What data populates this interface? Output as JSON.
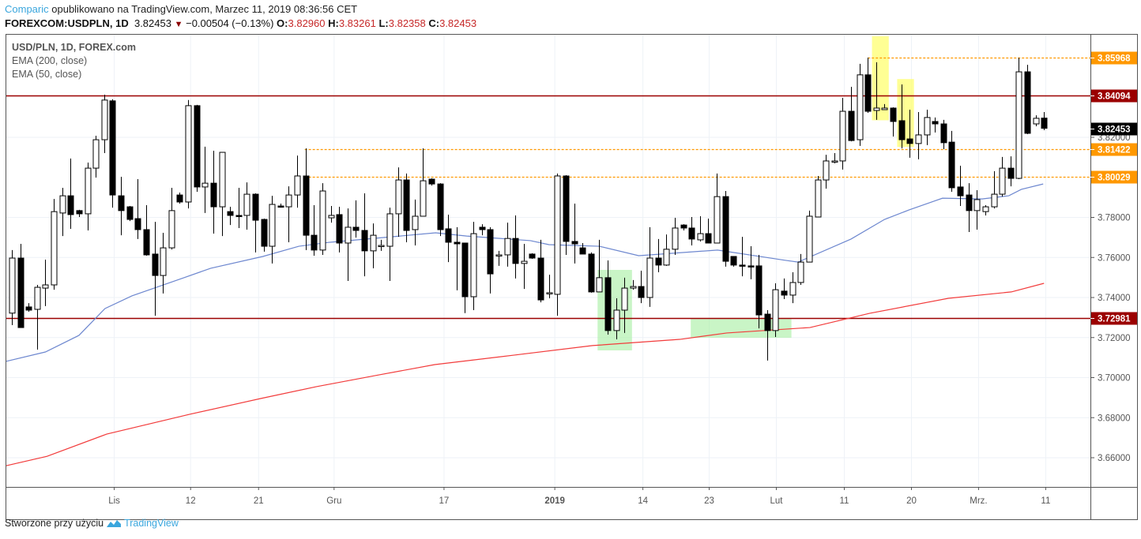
{
  "header": {
    "publisher": "Comparic",
    "published_text": "opublikowano na TradingView.com, Marzec 11, 2019 08:36:56 CET",
    "symbol": "FOREXCOM:USDPLN, 1D",
    "last": "3.82453",
    "change": "−0.00504 (−0.13%)",
    "o_label": "O:",
    "o": "3.82960",
    "h_label": "H:",
    "h": "3.83261",
    "l_label": "L:",
    "l": "3.82358",
    "c_label": "C:",
    "c": "3.82453"
  },
  "legend": {
    "title": "USD/PLN, 1D, FOREX.com",
    "ema200": "EMA (200, close)",
    "ema50": "EMA (50, close)"
  },
  "footer": {
    "text": "Stworzone przy użyciu",
    "brand": "TradingView"
  },
  "colors": {
    "ema200": "#f23b3b",
    "ema50": "#6d87cf",
    "level_red": "#9b0000",
    "level_orange": "#ff9800",
    "last_price": "#000000",
    "highlight_yellow": "#ffff66",
    "highlight_green": "#a5eea0"
  },
  "chart_data": {
    "type": "candlestick",
    "title": "USD/PLN, 1D, FOREX.com",
    "ylim": [
      3.64,
      3.87
    ],
    "y_ticks": [
      "3.66000",
      "3.68000",
      "3.70000",
      "3.72000",
      "3.74000",
      "3.76000",
      "3.78000",
      "3.82000"
    ],
    "y_tick_values": [
      3.66,
      3.68,
      3.7,
      3.72,
      3.74,
      3.76,
      3.78,
      3.82
    ],
    "x_ticks": [
      {
        "label": "Lis",
        "bar": 12.2
      },
      {
        "label": "12",
        "bar": 21.3
      },
      {
        "label": "21",
        "bar": 29.4
      },
      {
        "label": "Gru",
        "bar": 38.4
      },
      {
        "label": "17",
        "bar": 51.5
      },
      {
        "label": "2019",
        "bar": 64.7,
        "bold": true
      },
      {
        "label": "14",
        "bar": 75.2
      },
      {
        "label": "23",
        "bar": 83.1
      },
      {
        "label": "Lut",
        "bar": 91.1
      },
      {
        "label": "11",
        "bar": 99.2
      },
      {
        "label": "20",
        "bar": 107.2
      },
      {
        "label": "Mrz.",
        "bar": 115.2
      },
      {
        "label": "11",
        "bar": 123.2
      }
    ],
    "levels": [
      {
        "value": 3.85968,
        "label": "3.85968",
        "style": "orange-dotted",
        "from_bar": 102.0
      },
      {
        "value": 3.84094,
        "label": "3.84094",
        "style": "red-solid",
        "from_bar": -1
      },
      {
        "value": 3.82453,
        "label": "3.82453",
        "style": "last-price",
        "from_bar": null
      },
      {
        "value": 3.81422,
        "label": "3.81422",
        "style": "orange-dotted",
        "from_bar": 34.9
      },
      {
        "value": 3.80029,
        "label": "3.80029",
        "style": "orange-dotted",
        "from_bar": 34.9
      },
      {
        "value": 3.72981,
        "label": "3.72981",
        "style": "red-solid",
        "from_bar": -1
      }
    ],
    "ohlc": [
      [
        3.7322,
        3.7637,
        3.7262,
        3.7597
      ],
      [
        3.7597,
        3.7668,
        3.725,
        3.725
      ],
      [
        3.7353,
        3.7372,
        3.7329,
        3.7337
      ],
      [
        3.7341,
        3.7463,
        3.714,
        3.7451
      ],
      [
        3.7447,
        3.7589,
        3.7357,
        3.7463
      ],
      [
        3.7463,
        3.7892,
        3.7439,
        3.7829
      ],
      [
        3.7822,
        3.7948,
        3.7707,
        3.7908
      ],
      [
        3.7908,
        3.8094,
        3.7743,
        3.7814
      ],
      [
        3.7834,
        3.7838,
        3.7802,
        3.7818
      ],
      [
        3.7818,
        3.8074,
        3.7735,
        3.8046
      ],
      [
        3.8046,
        3.8208,
        3.7999,
        3.8188
      ],
      [
        3.8188,
        3.8413,
        3.8121,
        3.8386
      ],
      [
        3.8382,
        3.839,
        3.7849,
        3.7912
      ],
      [
        3.7908,
        3.8003,
        3.7711,
        3.7834
      ],
      [
        3.7853,
        3.7857,
        3.7782,
        3.779
      ],
      [
        3.7794,
        3.7991,
        3.7692,
        3.7739
      ],
      [
        3.7739,
        3.7861,
        3.7609,
        3.7613
      ],
      [
        3.7617,
        3.7778,
        3.7309,
        3.751
      ],
      [
        3.751,
        3.7723,
        3.742,
        3.7648
      ],
      [
        3.7648,
        3.7948,
        3.764,
        3.7834
      ],
      [
        3.7912,
        3.7924,
        3.7869,
        3.7877
      ],
      [
        3.7877,
        3.8386,
        3.7845,
        3.8358
      ],
      [
        3.8358,
        3.8362,
        3.7928,
        3.7952
      ],
      [
        3.7952,
        3.8153,
        3.7822,
        3.7971
      ],
      [
        3.7971,
        3.8133,
        3.7719,
        3.7853
      ],
      [
        3.7853,
        3.8125,
        3.7707,
        3.8125
      ],
      [
        3.7829,
        3.7853,
        3.7762,
        3.781
      ],
      [
        3.781,
        3.7948,
        3.7747,
        3.7806
      ],
      [
        3.781,
        3.7975,
        3.7739,
        3.7916
      ],
      [
        3.7916,
        3.792,
        3.7625,
        3.7786
      ],
      [
        3.779,
        3.7794,
        3.7629,
        3.7656
      ],
      [
        3.7656,
        3.7908,
        3.757,
        3.7865
      ],
      [
        3.7857,
        3.7869,
        3.7849,
        3.7853
      ],
      [
        3.7853,
        3.7955,
        3.7676,
        3.7912
      ],
      [
        3.7912,
        3.8109,
        3.7849,
        3.8007
      ],
      [
        3.8007,
        3.8145,
        3.7637,
        3.7711
      ],
      [
        3.7711,
        3.7861,
        3.7609,
        3.7637
      ],
      [
        3.7637,
        3.7971,
        3.7613,
        3.7932
      ],
      [
        3.7798,
        3.7857,
        3.7774,
        3.781
      ],
      [
        3.7814,
        3.7853,
        3.7625,
        3.7672
      ],
      [
        3.7672,
        3.7845,
        3.7483,
        3.7751
      ],
      [
        3.7751,
        3.7885,
        3.7699,
        3.7735
      ],
      [
        3.7735,
        3.792,
        3.7506,
        3.7633
      ],
      [
        3.7633,
        3.777,
        3.7546,
        3.7711
      ],
      [
        3.7656,
        3.7688,
        3.7633,
        3.766
      ],
      [
        3.7656,
        3.7849,
        3.7483,
        3.7818
      ],
      [
        3.7818,
        3.805,
        3.7703,
        3.7987
      ],
      [
        3.7987,
        3.8019,
        3.7676,
        3.7735
      ],
      [
        3.7739,
        3.7889,
        3.766,
        3.7806
      ],
      [
        3.7806,
        3.8145,
        3.7806,
        3.7983
      ],
      [
        3.7991,
        3.7995,
        3.7959,
        3.7967
      ],
      [
        3.7967,
        3.7971,
        3.7707,
        3.7739
      ],
      [
        3.7743,
        3.7814,
        3.7577,
        3.7676
      ],
      [
        3.7676,
        3.7751,
        3.7436,
        3.7668
      ],
      [
        3.7672,
        3.7672,
        3.7322,
        3.7404
      ],
      [
        3.7404,
        3.7778,
        3.7337,
        3.7719
      ],
      [
        3.7751,
        3.7766,
        3.7711,
        3.7739
      ],
      [
        3.7739,
        3.7751,
        3.742,
        3.7518
      ],
      [
        3.7613,
        3.7633,
        3.7558,
        3.7613
      ],
      [
        3.7613,
        3.7774,
        3.7554,
        3.7695
      ],
      [
        3.7695,
        3.781,
        3.7495,
        3.757
      ],
      [
        3.757,
        3.7668,
        3.7443,
        3.7581
      ],
      [
        3.7617,
        3.7621,
        3.7593,
        3.7597
      ],
      [
        3.7597,
        3.7688,
        3.7376,
        3.7388
      ],
      [
        3.742,
        3.7514,
        3.7396,
        3.7424
      ],
      [
        3.7416,
        3.8019,
        3.7309,
        3.8007
      ],
      [
        3.8007,
        3.8011,
        3.7613,
        3.768
      ],
      [
        3.768,
        3.7869,
        3.757,
        3.7668
      ],
      [
        3.7648,
        3.7672,
        3.7617,
        3.7617
      ],
      [
        3.7617,
        3.7625,
        3.7424,
        3.7428
      ],
      [
        3.7428,
        3.7688,
        3.7428,
        3.7499
      ],
      [
        3.7499,
        3.7585,
        3.7215,
        3.7235
      ],
      [
        3.7235,
        3.7396,
        3.7191,
        3.7337
      ],
      [
        3.7337,
        3.7499,
        3.7223,
        3.7447
      ],
      [
        3.7447,
        3.7487,
        3.7439,
        3.7455
      ],
      [
        3.7455,
        3.7534,
        3.7372,
        3.74
      ],
      [
        3.74,
        3.7751,
        3.7353,
        3.7597
      ],
      [
        3.7597,
        3.7692,
        3.7526,
        3.7562
      ],
      [
        3.7562,
        3.7715,
        3.7558,
        3.7641
      ],
      [
        3.7641,
        3.7798,
        3.7613,
        3.7747
      ],
      [
        3.7762,
        3.7766,
        3.7735,
        3.7747
      ],
      [
        3.7747,
        3.7802,
        3.766,
        3.7692
      ],
      [
        3.7688,
        3.7806,
        3.768,
        3.7719
      ],
      [
        3.7719,
        3.7794,
        3.7672,
        3.7672
      ],
      [
        3.7672,
        3.8019,
        3.7672,
        3.7904
      ],
      [
        3.7904,
        3.7932,
        3.7554,
        3.7581
      ],
      [
        3.7605,
        3.7605,
        3.7554,
        3.7562
      ],
      [
        3.7562,
        3.7703,
        3.7506,
        3.7558
      ],
      [
        3.7558,
        3.7656,
        3.7491,
        3.7554
      ],
      [
        3.7558,
        3.7613,
        3.7246,
        3.7313
      ],
      [
        3.7317,
        3.7337,
        3.7085,
        3.7235
      ],
      [
        3.7235,
        3.7471,
        3.7203,
        3.7439
      ],
      [
        3.7432,
        3.7495,
        3.7392,
        3.7412
      ],
      [
        3.7412,
        3.7526,
        3.7372,
        3.7475
      ],
      [
        3.7475,
        3.7617,
        3.7463,
        3.7577
      ],
      [
        3.7577,
        3.7834,
        3.7577,
        3.7806
      ],
      [
        3.7802,
        3.8007,
        3.7802,
        3.7987
      ],
      [
        3.7987,
        3.8113,
        3.7944,
        3.8082
      ],
      [
        3.8078,
        3.8121,
        3.807,
        3.8082
      ],
      [
        3.8082,
        3.8397,
        3.8039,
        3.833
      ],
      [
        3.833,
        3.8452,
        3.818,
        3.8184
      ],
      [
        3.8188,
        3.8567,
        3.8157,
        3.8512
      ],
      [
        3.8512,
        3.8598,
        3.8322,
        3.833
      ],
      [
        3.8334,
        3.8575,
        3.8287,
        3.8346
      ],
      [
        3.8338,
        3.8366,
        3.8338,
        3.8346
      ],
      [
        3.8346,
        3.835,
        3.8204,
        3.8279
      ],
      [
        3.8283,
        3.8464,
        3.8145,
        3.8188
      ],
      [
        3.8192,
        3.8338,
        3.8098,
        3.8169
      ],
      [
        3.8169,
        3.8326,
        3.809,
        3.8212
      ],
      [
        3.8212,
        3.8338,
        3.8161,
        3.8299
      ],
      [
        3.8279,
        3.8299,
        3.8224,
        3.8267
      ],
      [
        3.8267,
        3.8287,
        3.8141,
        3.8173
      ],
      [
        3.8176,
        3.8232,
        3.7928,
        3.7948
      ],
      [
        3.7952,
        3.8058,
        3.7857,
        3.7908
      ],
      [
        3.7912,
        3.7971,
        3.7727,
        3.7834
      ],
      [
        3.7834,
        3.7936,
        3.7739,
        3.7889
      ],
      [
        3.7829,
        3.7861,
        3.781,
        3.7853
      ],
      [
        3.7853,
        3.8031,
        3.7845,
        3.7916
      ],
      [
        3.7916,
        3.8102,
        3.7904,
        3.8046
      ],
      [
        3.8046,
        3.8105,
        3.7955,
        3.7995
      ],
      [
        3.7995,
        3.8597,
        3.7991,
        3.8527
      ],
      [
        3.8527,
        3.8562,
        3.8216,
        3.822
      ],
      [
        3.8267,
        3.831,
        3.8255,
        3.8295
      ],
      [
        3.8296,
        3.83261,
        3.82358,
        3.82453
      ]
    ],
    "ema50": [
      [
        -0.7,
        3.7081
      ],
      [
        4.0,
        3.7128
      ],
      [
        8.0,
        3.7211
      ],
      [
        11.1,
        3.7345
      ],
      [
        14.3,
        3.7408
      ],
      [
        20.5,
        3.7499
      ],
      [
        23.7,
        3.7546
      ],
      [
        29.9,
        3.7605
      ],
      [
        34.2,
        3.7656
      ],
      [
        37.9,
        3.7676
      ],
      [
        45.2,
        3.7703
      ],
      [
        50.5,
        3.7723
      ],
      [
        54.2,
        3.7707
      ],
      [
        61.8,
        3.7684
      ],
      [
        64.0,
        3.7664
      ],
      [
        70.0,
        3.7656
      ],
      [
        74.7,
        3.7609
      ],
      [
        84.1,
        3.7637
      ],
      [
        92.3,
        3.7585
      ],
      [
        93.7,
        3.7577
      ],
      [
        100.0,
        3.7692
      ],
      [
        104.0,
        3.779
      ],
      [
        106.9,
        3.7837
      ],
      [
        110.9,
        3.7896
      ],
      [
        115.6,
        3.7892
      ],
      [
        118.8,
        3.7908
      ],
      [
        120.3,
        3.794
      ],
      [
        122.9,
        3.7967
      ]
    ],
    "ema200": [
      [
        -0.7,
        3.656
      ],
      [
        4.2,
        3.6607
      ],
      [
        11.3,
        3.6718
      ],
      [
        21.2,
        3.6817
      ],
      [
        29.7,
        3.6896
      ],
      [
        36.3,
        3.6955
      ],
      [
        43.8,
        3.7014
      ],
      [
        50.4,
        3.7065
      ],
      [
        59.8,
        3.7112
      ],
      [
        69.2,
        3.716
      ],
      [
        79.6,
        3.7191
      ],
      [
        85.2,
        3.7223
      ],
      [
        95.1,
        3.725
      ],
      [
        102.2,
        3.7321
      ],
      [
        111.6,
        3.7396
      ],
      [
        119.1,
        3.7428
      ],
      [
        123,
        3.7471
      ]
    ],
    "highlights": [
      {
        "color": "yellow",
        "bars": [
          102.5,
          104.5
        ],
        "price": [
          3.8285,
          3.8705
        ]
      },
      {
        "color": "yellow",
        "bars": [
          105.5,
          107.5
        ],
        "price": [
          3.8152,
          3.8491
        ]
      },
      {
        "color": "green",
        "bars": [
          69.8,
          73.9
        ],
        "price": [
          3.7136,
          3.7538
        ]
      },
      {
        "color": "green",
        "bars": [
          80.9,
          92.9
        ],
        "price": [
          3.7199,
          3.7293
        ]
      }
    ]
  }
}
